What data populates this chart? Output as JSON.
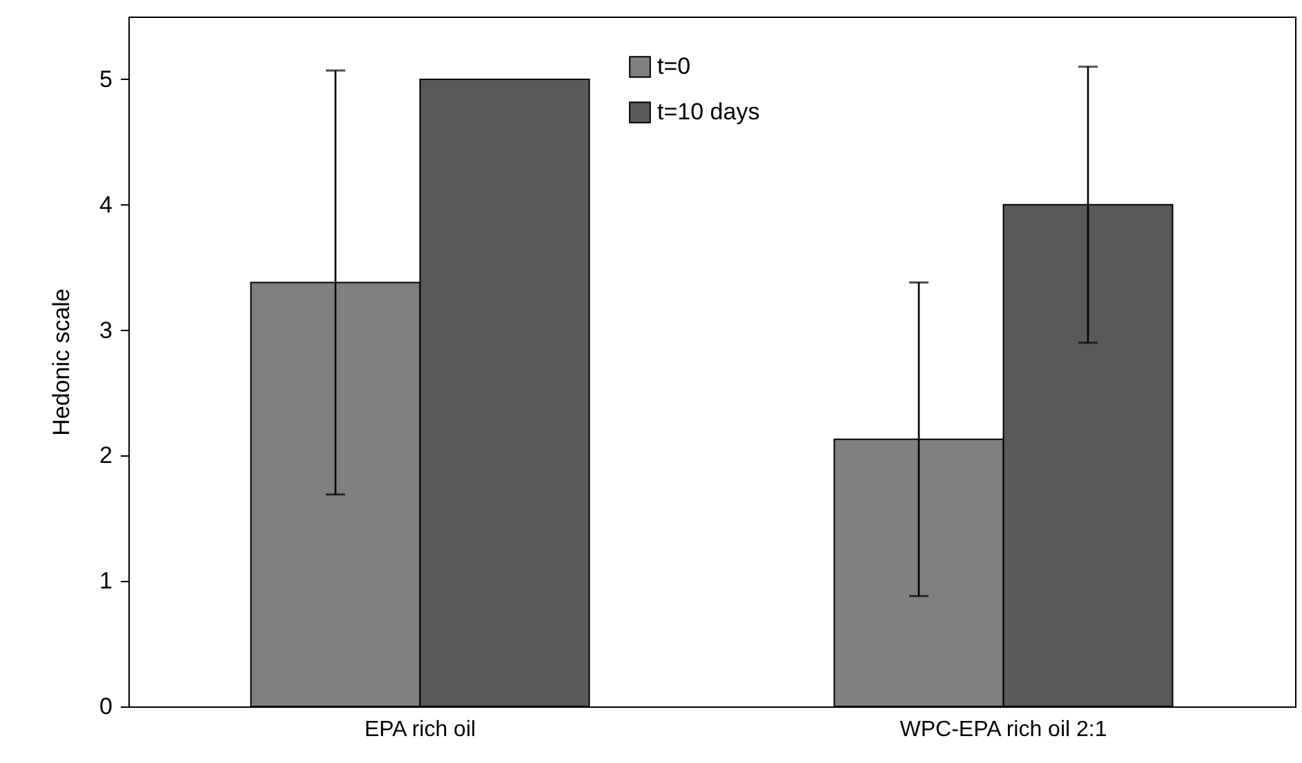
{
  "chart_data": {
    "type": "bar",
    "ylabel": "Hedonic scale",
    "categories": [
      "EPA rich oil",
      "WPC-EPA rich oil 2:1"
    ],
    "series": [
      {
        "name": "t=0",
        "color": "#808080",
        "values": [
          3.38,
          2.13
        ],
        "errors": [
          1.69,
          1.25
        ]
      },
      {
        "name": "t=10 days",
        "color": "#595959",
        "values": [
          5.0,
          4.0
        ],
        "errors": [
          null,
          1.1
        ]
      }
    ],
    "ylim": [
      0,
      5.5
    ],
    "yticks": [
      0,
      1,
      2,
      3,
      4,
      5
    ],
    "grid": false,
    "legend": "top"
  }
}
